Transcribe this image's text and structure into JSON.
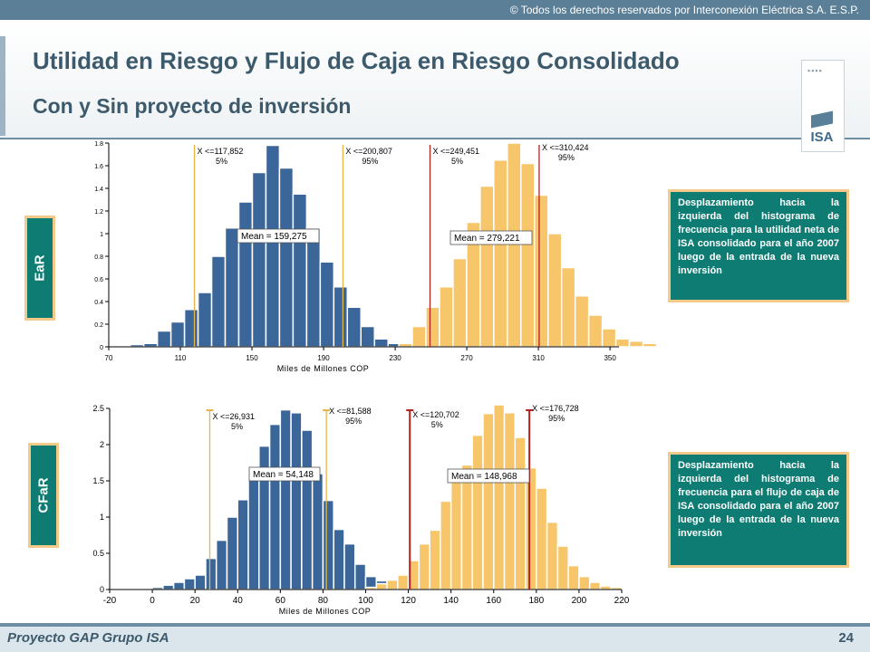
{
  "header": {
    "copyright": "© Todos los derechos reservados por Interconexión Eléctrica S.A. E.S.P.",
    "title_line1": "Utilidad en Riesgo y Flujo de Caja en Riesgo Consolidado",
    "title_line2": "Con y Sin proyecto de inversión",
    "logo_text": "ISA"
  },
  "labels": {
    "ear": "EaR",
    "cfar": "CFaR"
  },
  "notes": {
    "ear": "Desplazamiento hacia la izquierda del histograma de frecuencia para la utilidad neta de ISA consolidado para el año 2007 luego de la entrada de la nueva inversión",
    "cfar": "Desplazamiento hacia la izquierda del histograma de frecuencia para el flujo de caja de ISA consolidado para el año 2007 luego de la entrada de la nueva inversión"
  },
  "footer": {
    "left": "Proyecto GAP Grupo ISA",
    "page": "24"
  },
  "colors": {
    "blue": "#3a6699",
    "yellow": "#f7c66b",
    "orange_line": "#e8b54a",
    "red_line": "#b52121"
  },
  "chart_data": [
    {
      "type": "bar",
      "name": "EaR",
      "xlabel": "Miles de Millones COP",
      "xlim": [
        70,
        355
      ],
      "ylim": [
        0,
        1.8
      ],
      "xticks": [
        "70",
        "110",
        "150",
        "190",
        "230",
        "270",
        "310",
        "350"
      ],
      "yticks": [
        "0",
        "0.2",
        "0.4",
        "0.6",
        "0.8",
        "1",
        "1.2",
        "1.4",
        "1.6",
        "1.8"
      ],
      "series": [
        {
          "color": "blue",
          "bin_start": 82,
          "bin_width": 7.58,
          "values": [
            0.02,
            0.03,
            0.14,
            0.22,
            0.33,
            0.48,
            0.8,
            1.05,
            1.28,
            1.54,
            1.78,
            1.58,
            1.35,
            1.05,
            0.75,
            0.53,
            0.35,
            0.18,
            0.07,
            0.03
          ]
        },
        {
          "color": "yellow",
          "bin_start": 232,
          "bin_width": 7.58,
          "values": [
            0.03,
            0.18,
            0.35,
            0.53,
            0.78,
            1.1,
            1.42,
            1.65,
            1.8,
            1.62,
            1.34,
            1.0,
            0.7,
            0.45,
            0.28,
            0.16,
            0.07,
            0.05,
            0.03
          ]
        }
      ],
      "markers": [
        {
          "x": 117.852,
          "label1": "X <=117,852",
          "label2": "5%",
          "color": "orange_line"
        },
        {
          "x": 200.807,
          "label1": "X <=200,807",
          "label2": "95%",
          "color": "orange_line"
        },
        {
          "x": 249.451,
          "label1": "X <=249,451",
          "label2": "5%",
          "color": "red_line"
        },
        {
          "x": 310.424,
          "label1": "X <=310,424",
          "label2": "95%",
          "color": "red_line"
        }
      ],
      "means": [
        {
          "label": "Mean = 159,275"
        },
        {
          "label": "Mean = 279,221"
        }
      ]
    },
    {
      "type": "bar",
      "name": "CFaR",
      "xlabel": "Miles de Millones COP",
      "xlim": [
        -20,
        220
      ],
      "ylim": [
        0,
        2.5
      ],
      "xticks": [
        "-20",
        "0",
        "20",
        "40",
        "60",
        "80",
        "100",
        "120",
        "140",
        "160",
        "180",
        "200",
        "220"
      ],
      "yticks": [
        "0",
        "0.5",
        "1",
        "1.5",
        "2",
        "2.5"
      ],
      "series": [
        {
          "color": "blue",
          "bin_start": 0,
          "bin_width": 5,
          "values": [
            0.03,
            0.06,
            0.1,
            0.15,
            0.2,
            0.43,
            0.68,
            1.0,
            1.24,
            1.58,
            1.98,
            2.28,
            2.48,
            2.44,
            2.2,
            1.6,
            1.23,
            0.83,
            0.63,
            0.35,
            0.18,
            0.12,
            0.05,
            0.03
          ]
        },
        {
          "color": "yellow",
          "bin_start": 100,
          "bin_width": 5,
          "values": [
            0.03,
            0.08,
            0.13,
            0.2,
            0.4,
            0.63,
            0.82,
            1.22,
            1.55,
            1.72,
            2.13,
            2.43,
            2.55,
            2.44,
            2.1,
            1.68,
            1.4,
            0.93,
            0.6,
            0.33,
            0.18,
            0.1,
            0.05,
            0.03
          ]
        }
      ],
      "markers": [
        {
          "x": 26.931,
          "label1": "X <=26,931",
          "label2": "5%",
          "color": "orange_line"
        },
        {
          "x": 81.588,
          "label1": "X <=81,588",
          "label2": "95%",
          "color": "orange_line"
        },
        {
          "x": 120.702,
          "label1": "X <=120,702",
          "label2": "5%",
          "color": "red_line"
        },
        {
          "x": 176.728,
          "label1": "X <=176,728",
          "label2": "95%",
          "color": "red_line"
        }
      ],
      "means": [
        {
          "label": "Mean = 54,148"
        },
        {
          "label": "Mean = 148,968"
        }
      ]
    }
  ]
}
